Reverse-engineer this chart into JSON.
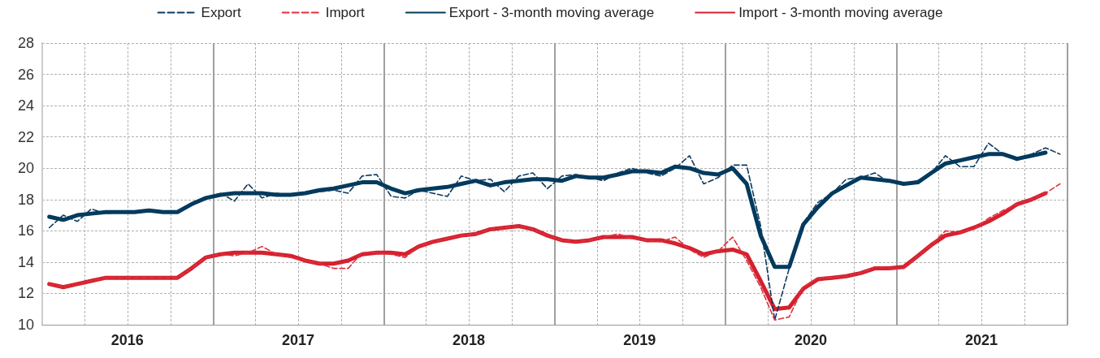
{
  "chart_data": {
    "type": "line",
    "x": [
      "2016-01-16",
      "2016-02-15",
      "2016-03-16",
      "2016-04-15",
      "2016-05-16",
      "2016-06-15",
      "2016-07-16",
      "2016-08-16",
      "2016-09-15",
      "2016-10-16",
      "2016-11-15",
      "2016-12-16",
      "2017-01-16",
      "2017-02-15",
      "2017-03-16",
      "2017-04-15",
      "2017-05-16",
      "2017-06-15",
      "2017-07-16",
      "2017-08-16",
      "2017-09-15",
      "2017-10-16",
      "2017-11-15",
      "2017-12-16",
      "2018-01-16",
      "2018-02-15",
      "2018-03-16",
      "2018-04-15",
      "2018-05-16",
      "2018-06-15",
      "2018-07-16",
      "2018-08-16",
      "2018-09-15",
      "2018-10-16",
      "2018-11-15",
      "2018-12-16",
      "2019-01-16",
      "2019-02-15",
      "2019-03-16",
      "2019-04-15",
      "2019-05-16",
      "2019-06-15",
      "2019-07-16",
      "2019-08-16",
      "2019-09-15",
      "2019-10-16",
      "2019-11-15",
      "2019-12-16",
      "2020-01-16",
      "2020-02-15",
      "2020-03-16",
      "2020-04-15",
      "2020-05-16",
      "2020-06-15",
      "2020-07-16",
      "2020-08-16",
      "2020-09-15",
      "2020-10-16",
      "2020-11-15",
      "2020-12-16",
      "2021-01-16",
      "2021-02-15",
      "2021-03-16",
      "2021-04-15",
      "2021-05-16",
      "2021-06-15",
      "2021-07-16",
      "2021-08-16",
      "2021-09-15",
      "2021-10-16",
      "2021-11-15",
      "2021-12-16"
    ],
    "series": [
      {
        "name": "Export",
        "color": "#0d3a5f",
        "line_style": "dashed",
        "values": [
          16.2,
          17.0,
          16.6,
          17.4,
          17.1,
          17.2,
          17.2,
          17.3,
          17.2,
          17.2,
          17.6,
          18.1,
          18.4,
          17.9,
          19.0,
          18.1,
          18.4,
          18.3,
          18.4,
          18.5,
          18.6,
          18.4,
          19.5,
          19.6,
          18.2,
          18.1,
          18.6,
          18.4,
          18.2,
          19.5,
          19.2,
          19.3,
          18.5,
          19.5,
          19.7,
          18.7,
          19.5,
          19.6,
          19.4,
          19.2,
          19.7,
          20.0,
          19.7,
          19.5,
          20.0,
          20.8,
          19.0,
          19.4,
          20.2,
          20.2,
          16.3,
          10.3,
          13.6,
          16.5,
          17.8,
          18.4,
          19.3,
          19.4,
          19.7,
          19.1,
          19.0,
          19.2,
          19.7,
          20.8,
          20.1,
          20.1,
          21.6,
          20.9,
          20.5,
          20.9,
          21.3,
          20.9
        ]
      },
      {
        "name": "Import",
        "color": "#e0303c",
        "line_style": "dashed",
        "values": [
          12.6,
          12.4,
          12.6,
          12.8,
          13.0,
          13.0,
          13.0,
          13.0,
          13.0,
          13.0,
          13.6,
          14.3,
          14.5,
          14.4,
          14.6,
          15.0,
          14.5,
          14.3,
          14.1,
          13.9,
          13.6,
          13.6,
          14.6,
          14.6,
          14.5,
          14.3,
          15.0,
          15.3,
          15.5,
          15.7,
          15.8,
          16.1,
          16.2,
          16.3,
          16.1,
          15.7,
          15.4,
          15.3,
          15.4,
          15.6,
          15.8,
          15.5,
          15.4,
          15.3,
          15.6,
          14.8,
          14.3,
          14.7,
          15.6,
          14.1,
          12.4,
          10.3,
          10.5,
          12.4,
          13.0,
          13.0,
          13.1,
          13.3,
          13.7,
          13.6,
          13.6,
          14.4,
          15.1,
          16.0,
          15.9,
          16.1,
          16.8,
          17.3,
          17.7,
          18.0,
          18.4,
          19.0
        ]
      },
      {
        "name": "Export - 3-month moving average",
        "color": "#003a5d",
        "line_style": "solid",
        "values": [
          16.9,
          16.7,
          17.0,
          17.1,
          17.2,
          17.2,
          17.2,
          17.3,
          17.2,
          17.2,
          17.7,
          18.1,
          18.3,
          18.4,
          18.4,
          18.4,
          18.3,
          18.3,
          18.4,
          18.6,
          18.7,
          18.9,
          19.1,
          19.1,
          18.7,
          18.4,
          18.6,
          18.7,
          18.8,
          19.0,
          19.2,
          18.9,
          19.1,
          19.2,
          19.3,
          19.3,
          19.2,
          19.5,
          19.4,
          19.4,
          19.6,
          19.8,
          19.8,
          19.7,
          20.1,
          20.0,
          19.7,
          19.6,
          20.0,
          19.0,
          15.7,
          13.7,
          13.7,
          16.4,
          17.5,
          18.4,
          18.9,
          19.4,
          19.3,
          19.2,
          19.0,
          19.1,
          19.7,
          20.3,
          20.5,
          20.7,
          20.9,
          20.9,
          20.6,
          20.8,
          21.0,
          null
        ]
      },
      {
        "name": "Import - 3-month moving average",
        "color": "#d4212f",
        "line_style": "solid",
        "values": [
          12.6,
          12.4,
          12.6,
          12.8,
          13.0,
          13.0,
          13.0,
          13.0,
          13.0,
          13.0,
          13.6,
          14.3,
          14.5,
          14.6,
          14.6,
          14.6,
          14.5,
          14.4,
          14.1,
          13.9,
          13.9,
          14.1,
          14.5,
          14.6,
          14.6,
          14.5,
          15.0,
          15.3,
          15.5,
          15.7,
          15.8,
          16.1,
          16.2,
          16.3,
          16.1,
          15.7,
          15.4,
          15.3,
          15.4,
          15.6,
          15.6,
          15.6,
          15.4,
          15.4,
          15.2,
          14.9,
          14.5,
          14.7,
          14.8,
          14.5,
          12.8,
          11.0,
          11.1,
          12.3,
          12.9,
          13.0,
          13.1,
          13.3,
          13.6,
          13.6,
          13.7,
          14.4,
          15.1,
          15.7,
          15.9,
          16.2,
          16.6,
          17.1,
          17.7,
          18.0,
          18.4,
          null
        ]
      }
    ],
    "xlim": [
      "2016-01",
      "2022-01"
    ],
    "xticks": [
      {
        "value": "2016-01",
        "label": null
      },
      {
        "value": "2016-04",
        "label": null
      },
      {
        "value": "2016-07",
        "label": "2016"
      },
      {
        "value": "2016-10",
        "label": null
      },
      {
        "value": "2017-01",
        "label": null
      },
      {
        "value": "2017-04",
        "label": null
      },
      {
        "value": "2017-07",
        "label": "2017"
      },
      {
        "value": "2017-10",
        "label": null
      },
      {
        "value": "2018-01",
        "label": null
      },
      {
        "value": "2018-04",
        "label": null
      },
      {
        "value": "2018-07",
        "label": "2018"
      },
      {
        "value": "2018-10",
        "label": null
      },
      {
        "value": "2019-01",
        "label": null
      },
      {
        "value": "2019-04",
        "label": null
      },
      {
        "value": "2019-07",
        "label": "2019"
      },
      {
        "value": "2019-10",
        "label": null
      },
      {
        "value": "2020-01",
        "label": null
      },
      {
        "value": "2020-04",
        "label": null
      },
      {
        "value": "2020-07",
        "label": "2020"
      },
      {
        "value": "2020-10",
        "label": null
      },
      {
        "value": "2021-01",
        "label": null
      },
      {
        "value": "2021-04",
        "label": null
      },
      {
        "value": "2021-07",
        "label": "2021"
      },
      {
        "value": "2021-10",
        "label": null
      },
      {
        "value": "2022-01",
        "label": null
      }
    ],
    "ylim": [
      10,
      28
    ],
    "yticks": [
      10,
      12,
      14,
      16,
      18,
      20,
      22,
      24,
      26,
      28
    ],
    "grid": true,
    "legend": "top",
    "marker": "none"
  }
}
